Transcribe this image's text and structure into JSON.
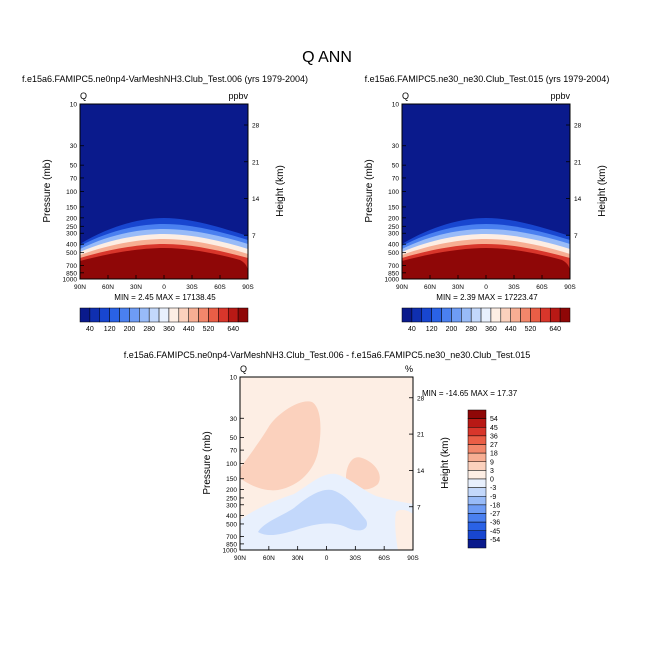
{
  "figure": {
    "title": "Q ANN"
  },
  "chart_data": [
    {
      "type": "heatmap",
      "title": "f.e15a6.FAMIPC5.ne0np4-VarMeshNH3.Club_Test.006 (yrs 1979-2004)",
      "variable": "Q",
      "units": "ppbv",
      "ylabel": "Pressure (mb)",
      "y2label": "Height (km)",
      "x_ticks": [
        "90N",
        "60N",
        "30N",
        "0",
        "30S",
        "60S",
        "90S"
      ],
      "y_ticks": [
        "10",
        "30",
        "50",
        "70",
        "100",
        "150",
        "200",
        "250",
        "300",
        "400",
        "500",
        "700",
        "850",
        "1000"
      ],
      "y2_ticks": [
        "28",
        "21",
        "14",
        "7"
      ],
      "ylim": [
        10,
        1000
      ],
      "stats": "MIN =   2.45  MAX = 17138.45",
      "colorbar": {
        "labels": [
          "40",
          "120",
          "200",
          "280",
          "360",
          "440",
          "520",
          "640"
        ],
        "colors": [
          "#0a1a8c",
          "#0f2fb0",
          "#1846d0",
          "#2a62e6",
          "#4a80f0",
          "#6e9cf5",
          "#98bbf8",
          "#c3d8fb",
          "#e8f0fd",
          "#fdeee4",
          "#fbd1bd",
          "#f7ae93",
          "#f2876b",
          "#ea5e46",
          "#d8362b",
          "#b81915",
          "#8f0707"
        ]
      }
    },
    {
      "type": "heatmap",
      "title": "f.e15a6.FAMIPC5.ne30_ne30.Club_Test.015 (yrs 1979-2004)",
      "variable": "Q",
      "units": "ppbv",
      "ylabel": "Pressure (mb)",
      "y2label": "Height (km)",
      "x_ticks": [
        "90N",
        "60N",
        "30N",
        "0",
        "30S",
        "60S",
        "90S"
      ],
      "y_ticks": [
        "10",
        "30",
        "50",
        "70",
        "100",
        "150",
        "200",
        "250",
        "300",
        "400",
        "500",
        "700",
        "850",
        "1000"
      ],
      "y2_ticks": [
        "28",
        "21",
        "14",
        "7"
      ],
      "ylim": [
        10,
        1000
      ],
      "stats": "MIN =   2.39  MAX = 17223.47",
      "colorbar": {
        "labels": [
          "40",
          "120",
          "200",
          "280",
          "360",
          "440",
          "520",
          "640"
        ],
        "colors": [
          "#0a1a8c",
          "#0f2fb0",
          "#1846d0",
          "#2a62e6",
          "#4a80f0",
          "#6e9cf5",
          "#98bbf8",
          "#c3d8fb",
          "#e8f0fd",
          "#fdeee4",
          "#fbd1bd",
          "#f7ae93",
          "#f2876b",
          "#ea5e46",
          "#d8362b",
          "#b81915",
          "#8f0707"
        ]
      }
    },
    {
      "type": "heatmap",
      "title": "f.e15a6.FAMIPC5.ne0np4-VarMeshNH3.Club_Test.006 - f.e15a6.FAMIPC5.ne30_ne30.Club_Test.015",
      "variable": "Q",
      "units": "%",
      "ylabel": "Pressure (mb)",
      "y2label": "Height (km)",
      "x_ticks": [
        "90N",
        "60N",
        "30N",
        "0",
        "30S",
        "60S",
        "90S"
      ],
      "y_ticks": [
        "10",
        "30",
        "50",
        "70",
        "100",
        "150",
        "200",
        "250",
        "300",
        "400",
        "500",
        "700",
        "850",
        "1000"
      ],
      "y2_ticks": [
        "28",
        "21",
        "14",
        "7"
      ],
      "ylim": [
        10,
        1000
      ],
      "stats": "MIN = -14.65  MAX =  17.37",
      "colorbar": {
        "labels": [
          "54",
          "45",
          "36",
          "27",
          "18",
          "9",
          "3",
          "0",
          "-3",
          "-9",
          "-18",
          "-27",
          "-36",
          "-45",
          "-54"
        ],
        "colors": [
          "#8f0707",
          "#b81915",
          "#d8362b",
          "#ea5e46",
          "#f2876b",
          "#f7ae93",
          "#fbd1bd",
          "#fdeee4",
          "#e8f0fd",
          "#c3d8fb",
          "#98bbf8",
          "#6e9cf5",
          "#4a80f0",
          "#2a62e6",
          "#1846d0",
          "#0a1a8c"
        ]
      }
    }
  ]
}
